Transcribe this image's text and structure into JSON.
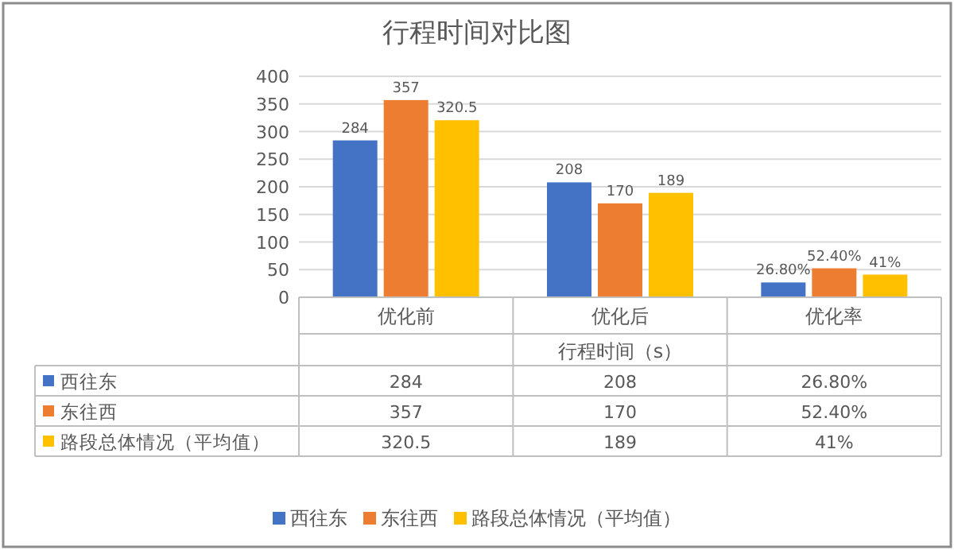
{
  "chart_data": {
    "type": "bar",
    "title": "行程时间对比图",
    "xlabel": "行程时间（s）",
    "categories": [
      "优化前",
      "优化后",
      "优化率"
    ],
    "series": [
      {
        "name": "西往东",
        "color": "#4472c4",
        "values": [
          284,
          208,
          26.8
        ],
        "value_labels": [
          "284",
          "208",
          "26.80%"
        ]
      },
      {
        "name": "东往西",
        "color": "#ed7d31",
        "values": [
          357,
          170,
          52.4
        ],
        "value_labels": [
          "357",
          "170",
          "52.40%"
        ]
      },
      {
        "name": "路段总体情况（平均值）",
        "color": "#ffc000",
        "values": [
          320.5,
          189,
          41
        ],
        "value_labels": [
          "320.5",
          "189",
          "41%"
        ]
      }
    ],
    "ylim": [
      0,
      400
    ],
    "yticks": [
      0,
      50,
      100,
      150,
      200,
      250,
      300,
      350,
      400
    ],
    "grid": "y",
    "legend": "bottom",
    "data_labels": true
  }
}
